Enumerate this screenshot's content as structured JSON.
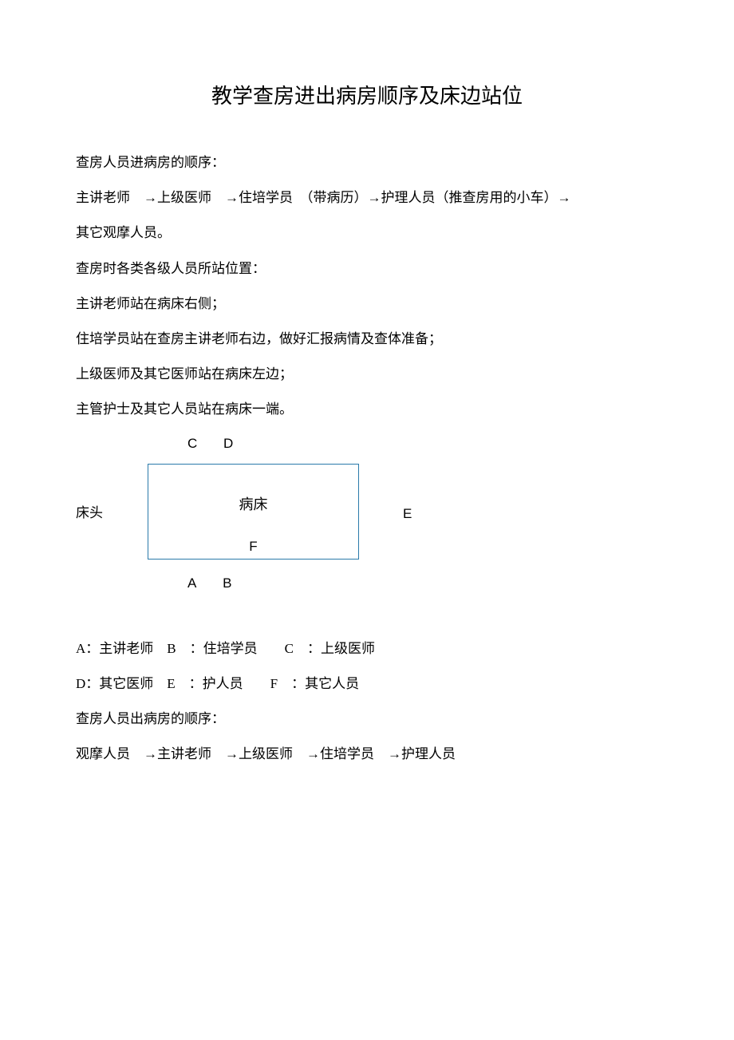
{
  "title": "教学查房进出病房顺序及床边站位",
  "section1_heading": "查房人员进病房的顺序：",
  "sequence_in": "主讲老师　→上级医师　→住培学员　（带病历）→护理人员（推查房用的小车）→",
  "sequence_in_cont": "其它观摩人员。",
  "section2_heading": "查房时各类各级人员所站位置：",
  "position_line1": "主讲老师站在病床右侧；",
  "position_line2": "住培学员站在查房主讲老师右边，做好汇报病情及查体准备；",
  "position_line3": "上级医师及其它医师站在病床左边；",
  "position_line4": "主管护士及其它人员站在病床一端。",
  "diagram": {
    "top_labels": [
      "C",
      "D"
    ],
    "bottom_labels": [
      "A",
      "B"
    ],
    "right_label": "E",
    "inner_label": "F",
    "bed_head": "床头",
    "bed_text": "病床",
    "bed_color": "#5BB0E0",
    "bed_border": "#2a7aaa"
  },
  "legend_row1": "A：主讲老师　B　：住培学员　　C　：上级医师",
  "legend_row2": "D：其它医师　E　：护人员　　F　：其它人员",
  "section3_heading": "查房人员出病房的顺序：",
  "sequence_out": "观摩人员　→主讲老师　→上级医师　→住培学员　→护理人员"
}
